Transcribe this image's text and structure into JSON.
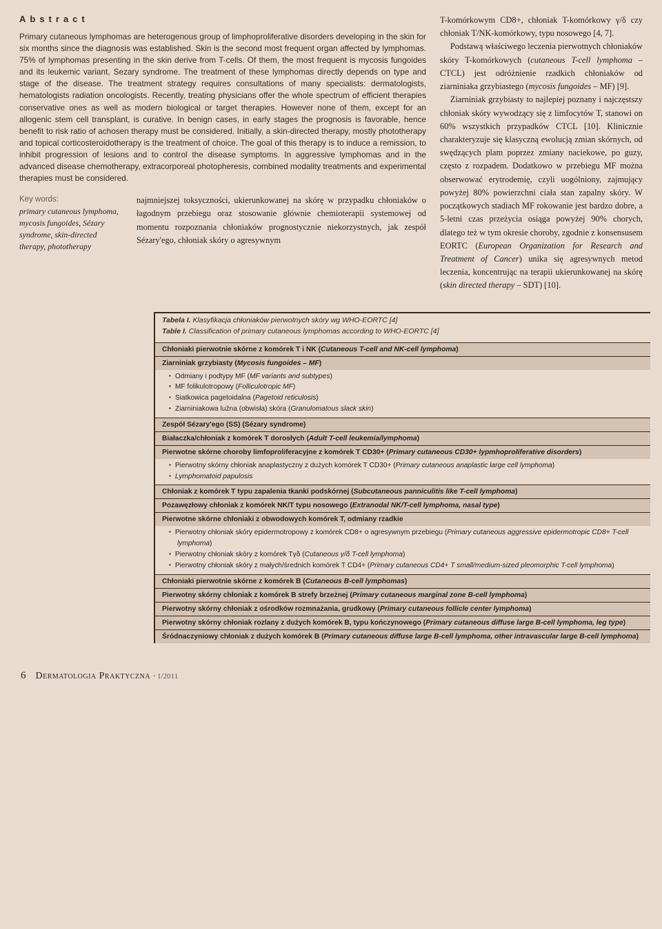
{
  "abstract": {
    "title": "Abstract",
    "body": "Primary cutaneous lymphomas are heterogenous group of limphoproliferative disorders developing in the skin for six months since the diagnosis was established. Skin is the second most frequent organ affected by lymphomas. 75% of lymphomas presenting in the skin derive from T-cells. Of them, the most frequent is mycosis fungoides and its leukemic variant, Sezary syndrome. The treatment of these lymphomas directly depends on type and stage of the disease. The treatment strategy requires consultations of many specialists: dermatologists, hematologists radiation oncologists. Recently, treating physicians offer the whole spectrum of efficient therapies conservative ones as well as modern biological or target therapies. However none of them, except for an allogenic stem cell transplant, is curative. In benign cases, in early stages the prognosis is favorable, hence benefit to risk ratio of achosen therapy must be considered. Initially, a skin-directed therapy, mostly phototherapy and topical corticosteroidotherapy is the treatment of choice. The goal of this therapy is to induce a remission, to inhibit progression of lesions and to control the disease symptoms. In aggressive lymphomas and in the advanced disease chemotherapy, extracorporeal photopheresis, combined modality treatments and experimental therapies must be considered."
  },
  "keywords": {
    "head": "Key words:",
    "body": "primary cutaneous lymphoma, mycosis fungoides, Sézary syndrome, skin-directed therapy, phototherapy"
  },
  "midParagraph": "najmniejszej toksyczności, ukierunkowanej na skórę w przypadku chłoniaków o łagodnym przebiegu oraz stosowanie głównie chemioterapii systemowej od momentu rozpoznania chłoniaków prognostycznie niekorzystnych, jak zespół Sézary'ego, chłoniak skóry o agresywnym",
  "rightColumn": {
    "p1": "T-komórkowym CD8+, chłoniak T-komórkowy γ/δ czy chłoniak T/NK-komórkowy, typu nosowego [4, 7].",
    "p2a": "Podstawą właściwego leczenia pierwotnych chłoniaków skóry T-komórkowych (",
    "p2i": "cutaneous T-cell lymphoma",
    "p2b": " – CTCL) jest odróżnienie rzadkich chłoniaków od ziarniniaka grzybiastego (",
    "p2i2": "mycosis fungoides",
    "p2c": " – MF) [9].",
    "p3a": "Ziarniniak grzybiasty to najlepiej poznany i najczęstszy chłoniak skóry wywodzący się z limfocytów T, stanowi on 60% wszystkich przypadków CTCL [10]. Klinicznie charakteryzuje się klasyczną ewolucją zmian skórnych, od swędzących plam poprzez zmiany naciekowe, po guzy, często z rozpadem. Dodatkowo w przebiegu MF można obserwować erytrodemię, czyli uogólniony, zajmujący powyżej 80% powierzchni ciała stan zapalny skóry. W początkowych stadiach MF rokowanie jest bardzo dobre, a 5-letni czas przeżycia osiąga powyżej 90% chorych, dlatego też w tym okresie choroby, zgodnie z konsensusem EORTC (",
    "p3i": "European Organization for Research and Treatment of Cancer",
    "p3b": ") unika się agresywnych metod leczenia, koncentrując na terapii ukierunkowanej na skórę (",
    "p3i2": "skin directed therapy",
    "p3c": " – SDT) [10]."
  },
  "table": {
    "captionPL_lead": "Tabela I.",
    "captionPL_rest": " Klasyfikacja chłoniaków pierwotnych skóry wg WHO-EORTC [4]",
    "captionEN_lead": "Table I.",
    "captionEN_rest": " Classification of primary cutaneous lymphomas according to WHO-EORTC [4]",
    "rows": [
      {
        "type": "hdr",
        "html": "Chłoniaki pierwotnie skórne z komórek T i NK (<span class='paren-ital'>Cutaneous T-cell and NK-cell lymphoma</span>)"
      },
      {
        "type": "hdr",
        "html": "Ziarniniak grzybiasty (<span class='paren-ital'>Mycosis fungoides – MF</span>)"
      },
      {
        "type": "list",
        "items": [
          "Odmiany i podtypy MF (<span class='italic'>MF variants and subtypes</span>)",
          "MF folikulotropowy (<span class='italic'>Folliculotropic MF</span>)",
          "Siatkowica pagetoidalna (<span class='italic'>Pagetoid reticulosis</span>)",
          "Ziarniniakowa luźna (obwisła) skóra (<span class='italic'>Granulomatous slack skin</span>)"
        ]
      },
      {
        "type": "hdr",
        "html": "Zespół Sézary'ego (SS) (Sézary syndrome)"
      },
      {
        "type": "hdr",
        "html": "Białaczka/chłoniak z komórek T dorosłych (<span class='paren-ital'>Adult T-cell leukemia/lymphoma</span>)"
      },
      {
        "type": "hdr",
        "html": "Pierwotne skórne choroby limfoproliferacyjne z komórek T CD30+ (<span class='paren-ital'>Primary cutaneous CD30+ lypmhoproliferative disorders</span>)"
      },
      {
        "type": "list",
        "items": [
          "Pierwotny skórny chłoniak anaplastyczny z dużych komórek T CD30+ (<span class='italic'>Primary cutaneous anaplastic large cell lymphoma</span>)",
          "<span class='italic'>Lymphomatoid papulosis</span>"
        ]
      },
      {
        "type": "hdr",
        "html": "Chłoniak z komórek T typu zapalenia tkanki podskórnej (<span class='paren-ital'>Subcutaneous panniculitis like T-cell lymphoma</span>)"
      },
      {
        "type": "hdr",
        "html": "Pozawęzłowy chłoniak z komórek NK/T typu nosowego (<span class='paren-ital'>Extranodal NK/T-cell lymphoma, nasal type</span>)"
      },
      {
        "type": "hdr",
        "html": "Pierwotne skórne chłoniaki z obwodowych komórek T, odmiany rzadkie"
      },
      {
        "type": "list",
        "items": [
          "Pierwotny chłoniak skóry epidermotropowy z komórek CD8+ o agresywnym przebiegu (<span class='italic'>Primary cutaneous aggressive epidermotropic CD8+ T-cell lymphoma</span>)",
          "Pierwotny chłoniak skóry z komórek Tγδ (<span class='italic'>Cutaneous γ/δ T-cell lymphoma</span>)",
          "Pierwotny chłoniak skóry z małych/średnich komórek T CD4+ (<span class='italic'>Primary cutaneous CD4+ T small/medium-sized pleomorphic T-cell lymphoma</span>)"
        ]
      },
      {
        "type": "hdr",
        "html": "Chłoniaki pierwotnie skórne z komórek B (<span class='paren-ital'>Cutaneous B-cell lymphomas</span>)"
      },
      {
        "type": "hdr",
        "html": "Pierwotny skórny chłoniak z komórek B strefy brzeżnej (<span class='paren-ital'>Primary cutaneous marginal zone B-cell lymphoma</span>)"
      },
      {
        "type": "hdr",
        "html": "Pierwotny skórny chłoniak z ośrodków rozmnażania, grudkowy (<span class='paren-ital'>Primary cutaneous follicle center lymphoma</span>)"
      },
      {
        "type": "hdr",
        "html": "Pierwotny skórny chłoniak rozlany z dużych komórek B, typu kończynowego (<span class='paren-ital'>Primary cutaneous diffuse large B-cell lymphoma, leg type</span>)"
      },
      {
        "type": "hdr",
        "html": "Śródnaczyniowy chłoniak z dużych komórek B (<span class='paren-ital'>Primary cutaneous diffuse large B-cell lymphoma, other intravascular large B-cell lymphoma</span>)"
      }
    ]
  },
  "footer": {
    "pageNum": "6",
    "brand": "Dermatologia Praktyczna",
    "issue": "1/2011"
  }
}
